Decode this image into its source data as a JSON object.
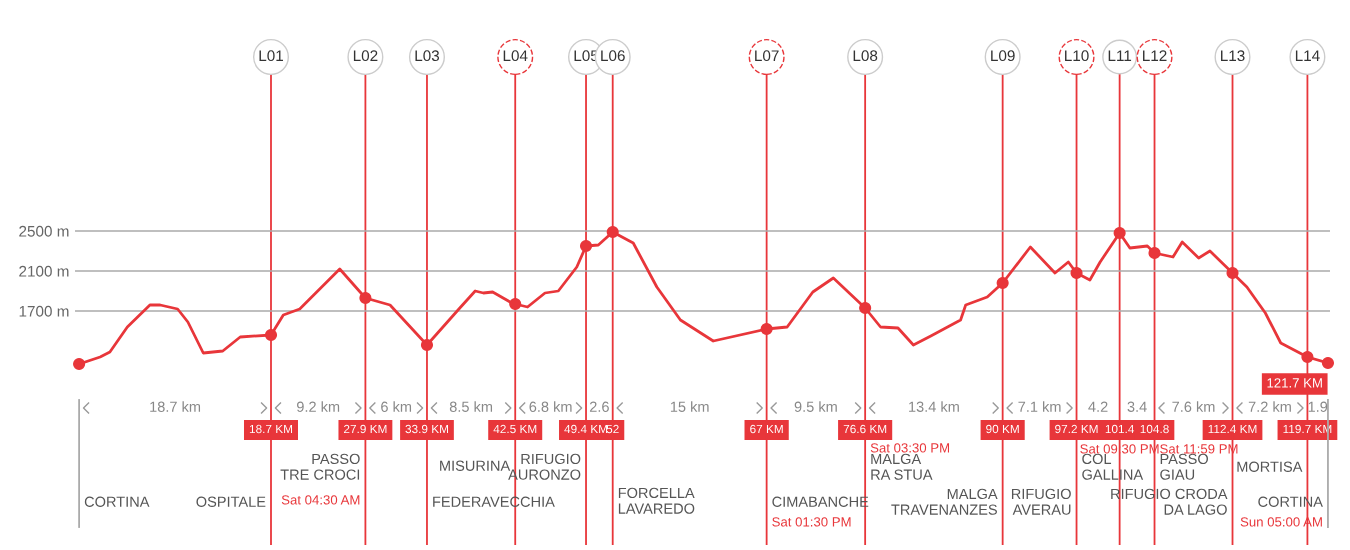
{
  "chart_data": {
    "type": "line",
    "series": [
      {
        "color": "#e8363a",
        "x": [
          0,
          2.05,
          3.0,
          4.7,
          6.9,
          7.9,
          9.6,
          10.6,
          12.1,
          14.0,
          15.7,
          18.7,
          19.9,
          21.5,
          25.4,
          27.9,
          30.3,
          33.9,
          37.1,
          38.6,
          39.4,
          40.3,
          42.0,
          42.5,
          43.7,
          45.4,
          46.7,
          48.5,
          49.4,
          50.6,
          52,
          54.0,
          56.3,
          58.6,
          61.8,
          67,
          69.0,
          71.5,
          73.5,
          76.6,
          78.1,
          79.8,
          81.3,
          83.0,
          85.9,
          86.4,
          88.5,
          90,
          92.7,
          95.1,
          96.4,
          97.2,
          98.5,
          99.5,
          101.4,
          102.4,
          104.1,
          104.8,
          106.6,
          107.5,
          109.1,
          110.2,
          112.4,
          113.8,
          115.6,
          117.1,
          119.7,
          121.7
        ],
        "values": [
          1170,
          1240,
          1290,
          1540,
          1760,
          1760,
          1720,
          1590,
          1280,
          1300,
          1440,
          1460,
          1660,
          1720,
          2120,
          1830,
          1760,
          1360,
          1730,
          1900,
          1880,
          1890,
          1790,
          1770,
          1740,
          1880,
          1900,
          2140,
          2350,
          2360,
          2490,
          2380,
          1940,
          1610,
          1400,
          1520,
          1540,
          1890,
          2030,
          1730,
          1540,
          1530,
          1360,
          1450,
          1610,
          1760,
          1840,
          1980,
          2340,
          2080,
          2190,
          2080,
          2010,
          2190,
          2480,
          2330,
          2350,
          2280,
          2240,
          2390,
          2230,
          2300,
          2080,
          1940,
          1680,
          1380,
          1240,
          1180
        ]
      },
      {
        "type": "scatter",
        "color": "#e8363a",
        "marker": "circle",
        "x": [
          0,
          18.7,
          27.9,
          33.9,
          42.5,
          49.4,
          52,
          67,
          76.6,
          90,
          97.2,
          101.4,
          104.8,
          112.4,
          119.7,
          121.7
        ],
        "values": [
          1170,
          1460,
          1830,
          1360,
          1770,
          2350,
          2490,
          1520,
          1730,
          1980,
          2080,
          2480,
          2280,
          2080,
          1240,
          1180
        ]
      }
    ],
    "xlim": [
      -0.4,
      121.9
    ],
    "ylim": [
      -640,
      4410
    ],
    "xticks": [
      {
        "value": 18.7,
        "label": "18.7 KM"
      },
      {
        "value": 27.9,
        "label": "27.9 KM"
      },
      {
        "value": 33.9,
        "label": "33.9 KM"
      },
      {
        "value": 42.5,
        "label": "42.5 KM"
      },
      {
        "value": 49.4,
        "label": "49.4 KM"
      },
      {
        "value": 52,
        "label": "52"
      },
      {
        "value": 67,
        "label": "67 KM"
      },
      {
        "value": 76.6,
        "label": "76.6 KM"
      },
      {
        "value": 90,
        "label": "90 KM"
      },
      {
        "value": 97.2,
        "label": "97.2 KM"
      },
      {
        "value": 101.4,
        "label": "101.4"
      },
      {
        "value": 104.8,
        "label": "104.8"
      },
      {
        "value": 112.4,
        "label": "112.4 KM"
      },
      {
        "value": 119.7,
        "label": "119.7 KM"
      }
    ],
    "yticks": [
      {
        "value": 1700,
        "label": "1700 m"
      },
      {
        "value": 2100,
        "label": "2100 m"
      },
      {
        "value": 2500,
        "label": "2500 m"
      }
    ],
    "grid": true,
    "legend": false,
    "ref_lines": [
      {
        "axis": "x",
        "value": 0,
        "label": null,
        "color": "#aaaaaa"
      },
      {
        "axis": "x",
        "value": 121.7,
        "label": null,
        "color": "#aaaaaa"
      }
    ],
    "annotations": [
      "L01",
      "L02",
      "L03",
      "L04",
      "L05",
      "L06",
      "L07",
      "L08",
      "L09",
      "L10",
      "L11",
      "L12",
      "L13",
      "L14",
      "18.7 km",
      "9.2 km",
      "6 km",
      "8.5 km",
      "6.8 km",
      "2.6",
      "15 km",
      "9.5 km",
      "13.4 km",
      "7.1 km",
      "4.2",
      "3.4",
      "7.6 km",
      "7.2 km",
      "1.9",
      "CORTINA",
      "OSPITALE",
      "PASSO\nTRE CROCI",
      "FEDERAVECCHIA",
      "MISURINA",
      "RIFUGIO\nAURONZO",
      "FORCELLA\nLAVAREDO",
      "CIMABANCHE",
      "MALGA\nRA STUA",
      "MALGA\nTRAVENANZES",
      "RIFUGIO\nAVERAU",
      "COL\nGALLINA",
      "PASSO\nGIAU",
      "RIFUGIO CRODA\nDA LAGO",
      "MORTISA",
      "CORTINA",
      "Sat 04:30 AM",
      "Sat 01:30 PM",
      "Sat 03:30 PM",
      "Sat 09:30 PM",
      "Sat 11:59 PM",
      "Sun 05:00 AM",
      "121.7 KM"
    ]
  }
}
